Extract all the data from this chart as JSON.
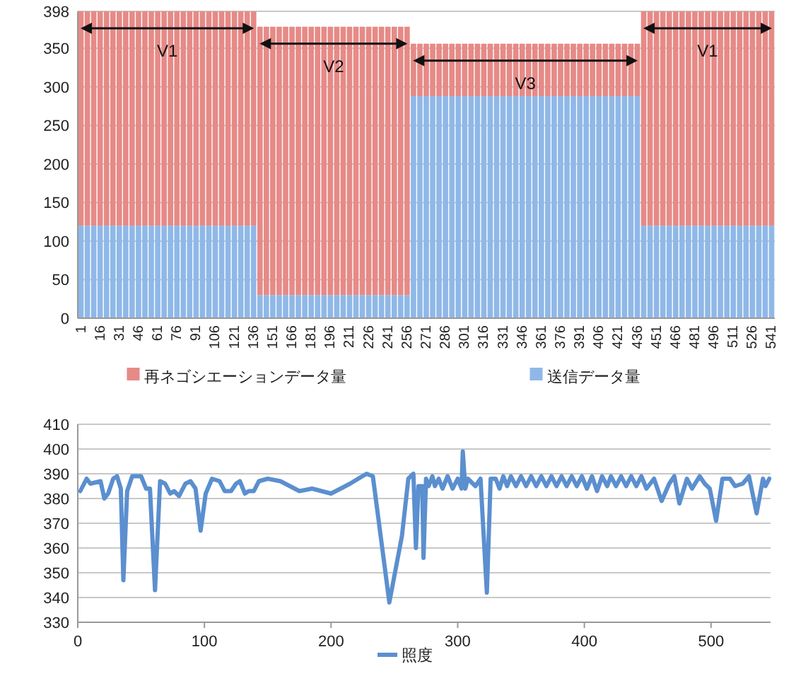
{
  "chart_data": [
    {
      "type": "bar",
      "stacked": true,
      "categories": [
        "1",
        null,
        null,
        "16",
        null,
        null,
        "31",
        null,
        null,
        "46",
        null,
        null,
        "61",
        null,
        null,
        "76",
        null,
        null,
        "91",
        null,
        null,
        "106",
        null,
        null,
        "121",
        null,
        null,
        "136",
        null,
        null,
        "151",
        null,
        null,
        "166",
        null,
        null,
        "181",
        null,
        null,
        "196",
        null,
        null,
        "211",
        null,
        null,
        "226",
        null,
        null,
        "241",
        null,
        null,
        "256",
        null,
        null,
        "271",
        null,
        null,
        "286",
        null,
        null,
        "301",
        null,
        null,
        "316",
        null,
        null,
        "331",
        null,
        null,
        "346",
        null,
        null,
        "361",
        null,
        null,
        "376",
        null,
        null,
        "391",
        null,
        null,
        "406",
        null,
        null,
        "421",
        null,
        null,
        "436",
        null,
        null,
        "451",
        null,
        null,
        "466",
        null,
        null,
        "481",
        null,
        null,
        "496",
        null,
        null,
        "511",
        null,
        null,
        "526",
        null,
        null,
        "541"
      ],
      "series": [
        {
          "name": "送信データ量",
          "color": "#8fb8e8",
          "values": [
            120,
            120,
            120,
            120,
            120,
            120,
            120,
            120,
            120,
            120,
            120,
            120,
            120,
            120,
            120,
            120,
            120,
            120,
            120,
            120,
            120,
            120,
            120,
            120,
            120,
            120,
            120,
            120,
            30,
            30,
            30,
            30,
            30,
            30,
            30,
            30,
            30,
            30,
            30,
            30,
            30,
            30,
            30,
            30,
            30,
            30,
            30,
            30,
            30,
            30,
            30,
            30,
            288,
            288,
            288,
            288,
            288,
            288,
            288,
            288,
            288,
            288,
            288,
            288,
            288,
            288,
            288,
            288,
            288,
            288,
            288,
            288,
            288,
            288,
            288,
            288,
            288,
            288,
            288,
            288,
            288,
            288,
            288,
            288,
            288,
            288,
            288,
            288,
            120,
            120,
            120,
            120,
            120,
            120,
            120,
            120,
            120,
            120,
            120,
            120,
            120,
            120,
            120,
            120,
            120,
            120,
            120,
            120,
            120
          ]
        },
        {
          "name": "再ネゴシエーションデータ量",
          "color": "#e68a87",
          "values": [
            278,
            278,
            278,
            278,
            278,
            278,
            278,
            278,
            278,
            278,
            278,
            278,
            278,
            278,
            278,
            278,
            278,
            278,
            278,
            278,
            278,
            278,
            278,
            278,
            278,
            278,
            278,
            278,
            348,
            348,
            348,
            348,
            348,
            348,
            348,
            348,
            348,
            348,
            348,
            348,
            348,
            348,
            348,
            348,
            348,
            348,
            348,
            348,
            348,
            348,
            348,
            348,
            68,
            68,
            68,
            68,
            68,
            68,
            68,
            68,
            68,
            68,
            68,
            68,
            68,
            68,
            68,
            68,
            68,
            68,
            68,
            68,
            68,
            68,
            68,
            68,
            68,
            68,
            68,
            68,
            68,
            68,
            68,
            68,
            68,
            68,
            68,
            68,
            278,
            278,
            278,
            278,
            278,
            278,
            278,
            278,
            278,
            278,
            278,
            278,
            278,
            278,
            278,
            278,
            278,
            278,
            278,
            278,
            278
          ]
        }
      ],
      "ylim": [
        0,
        398
      ],
      "yticks": [
        0,
        50,
        100,
        150,
        200,
        250,
        300,
        350,
        398
      ],
      "grid": "y",
      "legend": "bottom",
      "annotations": [
        "V1",
        "V2",
        "V3",
        "V1"
      ]
    },
    {
      "type": "line",
      "x": [
        2,
        7,
        10,
        18,
        21,
        24,
        28,
        31,
        34,
        36,
        39,
        43,
        50,
        54,
        57,
        61,
        65,
        69,
        73,
        76,
        80,
        85,
        89,
        93,
        97,
        101,
        106,
        112,
        116,
        121,
        125,
        128,
        132,
        135,
        139,
        143,
        150,
        160,
        175,
        185,
        200,
        215,
        228,
        233,
        246,
        256,
        261,
        265,
        267,
        269,
        272,
        273,
        275,
        277,
        280,
        282,
        285,
        288,
        292,
        296,
        300,
        303,
        304,
        306,
        308,
        314,
        318,
        323,
        326,
        330,
        333,
        336,
        339,
        342,
        346,
        350,
        354,
        358,
        362,
        366,
        370,
        374,
        378,
        382,
        386,
        390,
        394,
        398,
        402,
        406,
        410,
        414,
        418,
        421,
        425,
        429,
        433,
        437,
        441,
        445,
        449,
        455,
        461,
        467,
        471,
        475,
        481,
        485,
        491,
        495,
        499,
        504,
        509,
        515,
        519,
        525,
        530,
        536,
        541,
        543,
        546
      ],
      "series": [
        {
          "name": "照度",
          "color": "#5b8fcf",
          "values": [
            383,
            388,
            386,
            387,
            380,
            382,
            388,
            389,
            384,
            347,
            383,
            389,
            389,
            384,
            384,
            343,
            387,
            386,
            382,
            383,
            381,
            386,
            387,
            384,
            367,
            382,
            388,
            387,
            383,
            383,
            386,
            387,
            382,
            383,
            383,
            387,
            388,
            387,
            383,
            384,
            382,
            386,
            390,
            389,
            338,
            365,
            388,
            390,
            360,
            385,
            385,
            356,
            388,
            385,
            389,
            385,
            388,
            384,
            389,
            384,
            388,
            384,
            399,
            384,
            388,
            385,
            388,
            342,
            388,
            388,
            384,
            389,
            385,
            389,
            385,
            389,
            385,
            389,
            385,
            389,
            385,
            389,
            385,
            389,
            385,
            389,
            385,
            389,
            384,
            389,
            383,
            389,
            385,
            389,
            385,
            389,
            385,
            389,
            385,
            389,
            384,
            388,
            379,
            386,
            389,
            378,
            388,
            384,
            389,
            386,
            384,
            371,
            388,
            388,
            385,
            386,
            389,
            374,
            388,
            385,
            388
          ]
        }
      ],
      "xlim": [
        0,
        547
      ],
      "xticks": [
        0,
        100,
        200,
        300,
        400,
        500
      ],
      "ylim": [
        330,
        410
      ],
      "yticks": [
        330,
        340,
        350,
        360,
        370,
        380,
        390,
        400,
        410
      ],
      "grid": "y",
      "legend": "bottom"
    }
  ]
}
